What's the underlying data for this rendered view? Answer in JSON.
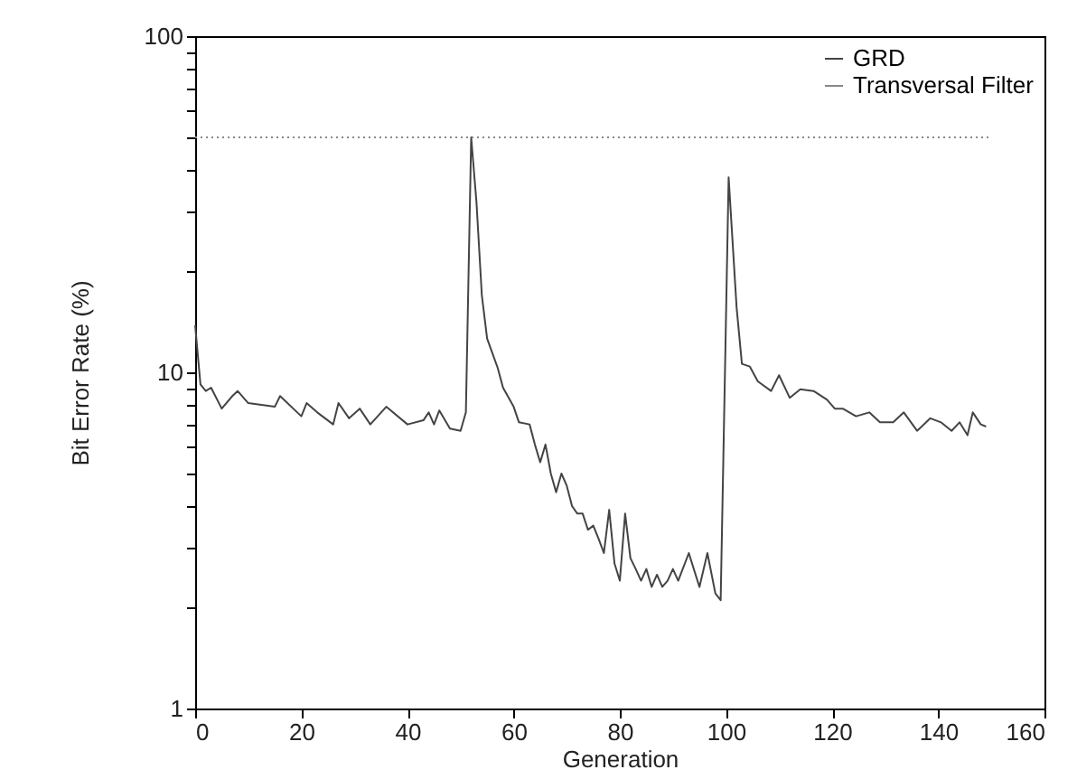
{
  "chart_data": {
    "type": "line",
    "xlabel": "Generation",
    "ylabel": "Bit Error Rate (%)",
    "log": "y",
    "grid": false,
    "legend": "top right",
    "marker": "none",
    "xlim": [
      0,
      160
    ],
    "xticks": [
      0,
      20,
      40,
      60,
      80,
      100,
      120,
      140,
      160
    ],
    "ylim": [
      1,
      100
    ],
    "yticks": [
      1,
      {
        "value": 2,
        "label": null
      },
      {
        "value": 3,
        "label": null
      },
      {
        "value": 4,
        "label": null
      },
      {
        "value": 5,
        "label": null
      },
      {
        "value": 6,
        "label": null
      },
      {
        "value": 7,
        "label": null
      },
      {
        "value": 8,
        "label": null
      },
      {
        "value": 9,
        "label": null
      },
      10,
      {
        "value": 20,
        "label": null
      },
      {
        "value": 30,
        "label": null
      },
      {
        "value": 40,
        "label": null
      },
      {
        "value": 50,
        "label": null
      },
      {
        "value": 60,
        "label": null
      },
      {
        "value": 70,
        "label": null
      },
      {
        "value": 80,
        "label": null
      },
      {
        "value": 90,
        "label": null
      },
      100
    ],
    "series": [
      {
        "name": "GRD",
        "color": "#444444",
        "line_style": "solid",
        "x": [
          0,
          1,
          2,
          3,
          5,
          7,
          8,
          10,
          15,
          16,
          20,
          21,
          23,
          26,
          27,
          29,
          31,
          33,
          36,
          40,
          43,
          44,
          45,
          46,
          48,
          50,
          51,
          52,
          53,
          54,
          55,
          56,
          57,
          58,
          60,
          61,
          63,
          64,
          65,
          66,
          67,
          68,
          69,
          70,
          71,
          72,
          73,
          74,
          75,
          76,
          77,
          78,
          79,
          80,
          81,
          82,
          83,
          84,
          85,
          86,
          87,
          88,
          89,
          90,
          91,
          93,
          95,
          96.5,
          98,
          99,
          100.5,
          102,
          103,
          104.5,
          106,
          108.5,
          110,
          112,
          114,
          116.5,
          119,
          120.5,
          122,
          124.5,
          127,
          129,
          131.5,
          133.5,
          136,
          138.5,
          140.5,
          142.5,
          144,
          145.5,
          146.5,
          148,
          149
        ],
        "values": [
          13.8,
          9.2,
          8.8,
          9,
          7.8,
          8.5,
          8.8,
          8.1,
          7.9,
          8.5,
          7.4,
          8.1,
          7.6,
          7,
          8.1,
          7.3,
          7.8,
          7,
          7.9,
          7,
          7.2,
          7.6,
          7,
          7.7,
          6.8,
          6.7,
          7.6,
          50,
          32,
          17,
          12.6,
          11.4,
          10.3,
          9,
          7.9,
          7.1,
          7,
          6.1,
          5.4,
          6.1,
          5,
          4.4,
          5,
          4.6,
          4,
          3.8,
          3.8,
          3.4,
          3.5,
          3.2,
          2.9,
          3.9,
          2.7,
          2.4,
          3.8,
          2.8,
          2.6,
          2.4,
          2.6,
          2.3,
          2.5,
          2.3,
          2.4,
          2.6,
          2.4,
          2.9,
          2.3,
          2.9,
          2.2,
          2.1,
          38,
          15.6,
          10.6,
          10.4,
          9.4,
          8.8,
          9.8,
          8.4,
          8.9,
          8.8,
          8.3,
          7.8,
          7.8,
          7.4,
          7.6,
          7.1,
          7.1,
          7.6,
          6.7,
          7.3,
          7.1,
          6.7,
          7.1,
          6.5,
          7.6,
          7,
          6.9
        ]
      },
      {
        "name": "Transversal Filter",
        "color": "#888888",
        "line_style": "dotted",
        "x": [
          0,
          150
        ],
        "values": [
          50,
          50
        ]
      }
    ]
  }
}
